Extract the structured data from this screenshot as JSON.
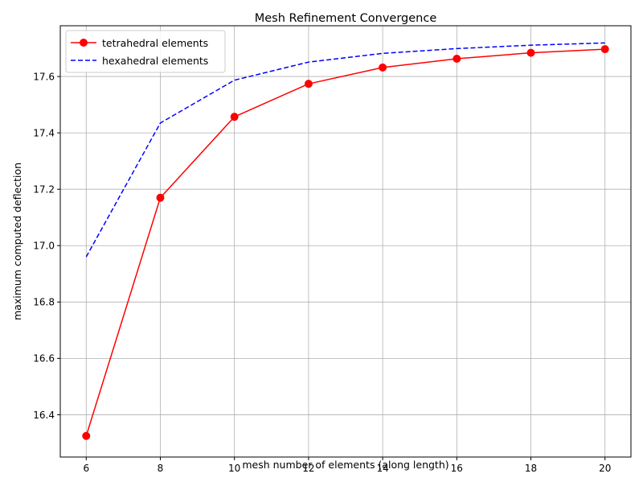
{
  "chart_data": {
    "type": "line",
    "title": "Mesh Refinement Convergence",
    "xlabel": "mesh number of elements (along length)",
    "ylabel": "maximum computed deflection",
    "x": [
      6,
      8,
      10,
      12,
      14,
      16,
      18,
      20
    ],
    "xlim": [
      5.3,
      20.7
    ],
    "ylim": [
      16.25,
      17.78
    ],
    "xticks": [
      6,
      8,
      10,
      12,
      14,
      16,
      18,
      20
    ],
    "yticks": [
      16.4,
      16.6,
      16.8,
      17.0,
      17.2,
      17.4,
      17.6
    ],
    "xtick_labels": [
      "6",
      "8",
      "10",
      "12",
      "14",
      "16",
      "18",
      "20"
    ],
    "ytick_labels": [
      "16.4",
      "16.6",
      "16.8",
      "17.0",
      "17.2",
      "17.4",
      "17.6"
    ],
    "grid": true,
    "legend_position": "top-left",
    "series": [
      {
        "name": "tetrahedral elements",
        "values": [
          16.325,
          17.17,
          17.457,
          17.574,
          17.632,
          17.663,
          17.684,
          17.697
        ],
        "color": "#ff0000",
        "line_style": "solid",
        "marker": "circle"
      },
      {
        "name": "hexahedral elements",
        "values": [
          16.96,
          17.435,
          17.587,
          17.651,
          17.682,
          17.699,
          17.711,
          17.719
        ],
        "color": "#0000ff",
        "line_style": "dashed",
        "marker": "none"
      }
    ]
  }
}
